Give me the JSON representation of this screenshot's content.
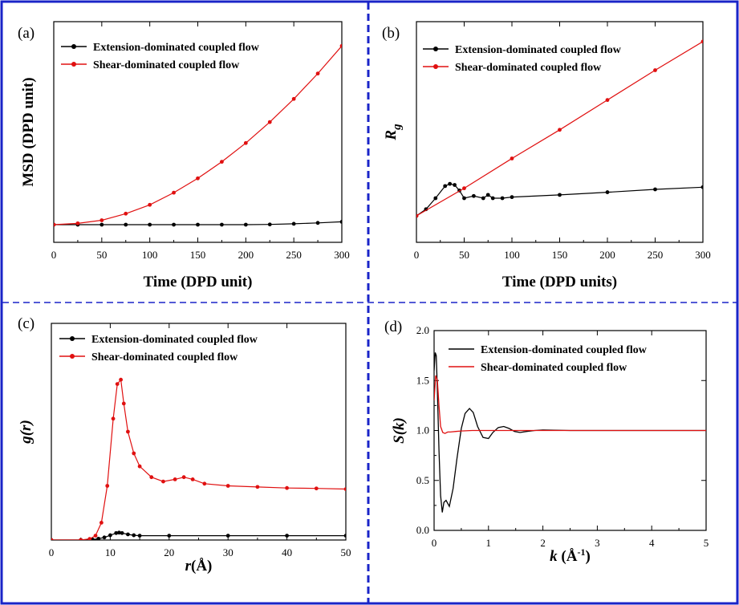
{
  "colors": {
    "frame": "#1a24c8",
    "extension": "#000000",
    "shear": "#e01010"
  },
  "panels": [
    {
      "letter": "(a)"
    },
    {
      "letter": "(b)"
    },
    {
      "letter": "(c)"
    },
    {
      "letter": "(d)"
    }
  ],
  "chart_data": [
    {
      "type": "line",
      "panel": "(a)",
      "xlabel": "Time (DPD unit)",
      "ylabel": "MSD (DPD unit)",
      "xlim": [
        0,
        300
      ],
      "ylim": [
        0,
        1
      ],
      "xticks": [
        "0",
        "50",
        "100",
        "150",
        "200",
        "250",
        "300"
      ],
      "yticks": [],
      "legend": "top-left",
      "marker": "dot",
      "series": [
        {
          "name": "Extension-dominated coupled flow",
          "color": "#000000",
          "x": [
            0,
            25,
            50,
            75,
            100,
            125,
            150,
            175,
            200,
            225,
            250,
            275,
            300
          ],
          "y": [
            0.08,
            0.08,
            0.08,
            0.08,
            0.08,
            0.08,
            0.08,
            0.08,
            0.08,
            0.081,
            0.084,
            0.088,
            0.093
          ]
        },
        {
          "name": "Shear-dominated coupled flow",
          "color": "#e01010",
          "x": [
            0,
            25,
            50,
            75,
            100,
            125,
            150,
            175,
            200,
            225,
            250,
            275,
            300
          ],
          "y": [
            0.08,
            0.086,
            0.1,
            0.13,
            0.17,
            0.225,
            0.29,
            0.365,
            0.45,
            0.545,
            0.65,
            0.765,
            0.89
          ]
        }
      ]
    },
    {
      "type": "line",
      "panel": "(b)",
      "xlabel": "Time (DPD units)",
      "ylabel_main": "R",
      "ylabel_sub": "g",
      "xlim": [
        0,
        300
      ],
      "ylim": [
        0,
        1
      ],
      "xticks": [
        "0",
        "50",
        "100",
        "150",
        "200",
        "250",
        "300"
      ],
      "yticks": [],
      "legend": "top-left",
      "marker": "dot",
      "series": [
        {
          "name": "Extension-dominated coupled flow",
          "color": "#000000",
          "x": [
            0,
            10,
            20,
            30,
            35,
            40,
            45,
            50,
            60,
            70,
            75,
            80,
            90,
            100,
            150,
            200,
            250,
            300
          ],
          "y": [
            0.12,
            0.15,
            0.2,
            0.255,
            0.265,
            0.26,
            0.235,
            0.2,
            0.21,
            0.2,
            0.215,
            0.2,
            0.2,
            0.205,
            0.215,
            0.227,
            0.24,
            0.25
          ]
        },
        {
          "name": "Shear-dominated coupled flow",
          "color": "#e01010",
          "x": [
            0,
            50,
            100,
            150,
            200,
            250,
            300
          ],
          "y": [
            0.12,
            0.245,
            0.38,
            0.51,
            0.645,
            0.78,
            0.91
          ]
        }
      ]
    },
    {
      "type": "line",
      "panel": "(c)",
      "xlabel_main": "r",
      "xlabel_unit": "(Å)",
      "ylabel": "g(r)",
      "xlim": [
        0,
        50
      ],
      "ylim": [
        0,
        1
      ],
      "xticks": [
        "0",
        "10",
        "20",
        "30",
        "40",
        "50"
      ],
      "yticks": [],
      "legend": "top-left",
      "marker": "dot",
      "series": [
        {
          "name": "Extension-dominated coupled flow",
          "color": "#000000",
          "x": [
            0,
            5,
            7,
            8,
            9,
            10,
            11,
            11.5,
            12,
            13,
            14,
            15,
            20,
            30,
            40,
            50
          ],
          "y": [
            0,
            0,
            0.002,
            0.006,
            0.012,
            0.022,
            0.032,
            0.034,
            0.032,
            0.026,
            0.022,
            0.02,
            0.02,
            0.02,
            0.02,
            0.02
          ]
        },
        {
          "name": "Shear-dominated coupled flow",
          "color": "#e01010",
          "x": [
            0,
            5,
            6.5,
            7.5,
            8.5,
            9.5,
            10.5,
            11.2,
            11.8,
            12.3,
            13,
            14,
            15,
            17,
            19,
            21,
            22.5,
            24,
            26,
            30,
            35,
            40,
            45,
            50
          ],
          "y": [
            0,
            0,
            0.005,
            0.02,
            0.08,
            0.25,
            0.56,
            0.72,
            0.74,
            0.63,
            0.5,
            0.4,
            0.34,
            0.29,
            0.27,
            0.28,
            0.29,
            0.28,
            0.26,
            0.25,
            0.245,
            0.24,
            0.238,
            0.235
          ]
        }
      ]
    },
    {
      "type": "line",
      "panel": "(d)",
      "xlabel_main": "k",
      "xlabel_unit": " (Å",
      "xlabel_sup": "-1",
      "xlabel_close": ")",
      "ylabel": "S(k)",
      "xlim": [
        0,
        5
      ],
      "ylim": [
        0,
        2
      ],
      "xticks": [
        "0",
        "1",
        "2",
        "3",
        "4",
        "5"
      ],
      "yticks": [
        "0.0",
        "0.5",
        "1.0",
        "1.5",
        "2.0"
      ],
      "legend": "top-center",
      "marker": "none",
      "series": [
        {
          "name": "Extension-dominated coupled flow",
          "color": "#000000",
          "x": [
            0,
            0.02,
            0.04,
            0.06,
            0.09,
            0.12,
            0.15,
            0.18,
            0.22,
            0.28,
            0.35,
            0.42,
            0.5,
            0.57,
            0.65,
            0.72,
            0.8,
            0.9,
            1.0,
            1.08,
            1.18,
            1.28,
            1.38,
            1.48,
            1.58,
            1.7,
            1.85,
            2.0,
            2.5,
            3,
            4,
            5
          ],
          "y": [
            1.6,
            1.78,
            1.75,
            1.4,
            0.8,
            0.35,
            0.18,
            0.28,
            0.3,
            0.24,
            0.42,
            0.72,
            1.02,
            1.17,
            1.22,
            1.18,
            1.04,
            0.93,
            0.92,
            0.98,
            1.03,
            1.04,
            1.02,
            0.99,
            0.98,
            0.99,
            1.0,
            1.005,
            1.0,
            1.0,
            1.0,
            1.0
          ]
        },
        {
          "name": "Shear-dominated coupled flow",
          "color": "#e01010",
          "x": [
            0,
            0.03,
            0.06,
            0.09,
            0.12,
            0.16,
            0.2,
            0.25,
            0.3,
            0.4,
            0.5,
            0.7,
            1.0,
            1.5,
            2,
            3,
            4,
            5
          ],
          "y": [
            1.3,
            1.55,
            1.5,
            1.25,
            1.04,
            0.98,
            0.97,
            0.985,
            0.985,
            0.99,
            0.995,
            1.0,
            1.0,
            1.0,
            1.0,
            1.0,
            1.0,
            1.0
          ]
        }
      ]
    }
  ]
}
